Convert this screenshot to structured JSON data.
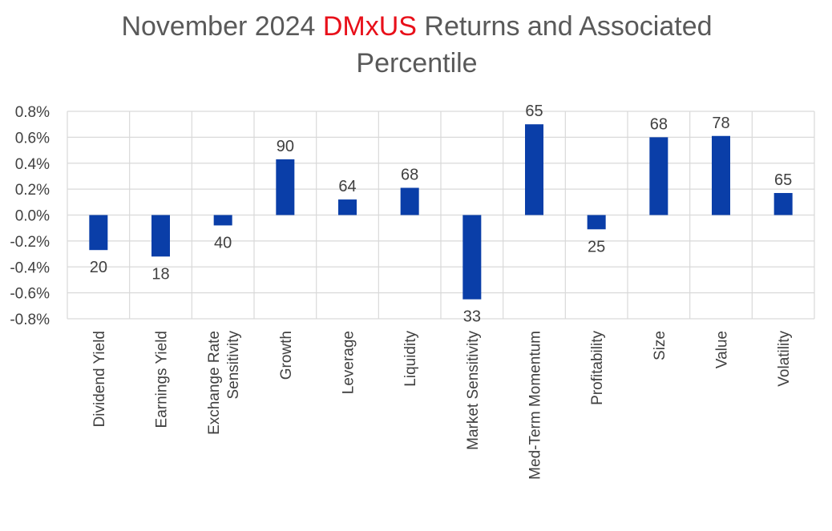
{
  "chart_data": {
    "type": "bar",
    "title": {
      "before": "November 2024 ",
      "highlight": "DMxUS",
      "after_line1": " Returns and Associated",
      "line2": "Percentile"
    },
    "categories": [
      [
        "Dividend Yield"
      ],
      [
        "Earnings Yield"
      ],
      [
        "Exchange Rate",
        "Sensitivity"
      ],
      [
        "Growth"
      ],
      [
        "Leverage"
      ],
      [
        "Liquidity"
      ],
      [
        "Market Sensitivity"
      ],
      [
        "Med-Term Momentum"
      ],
      [
        "Profitability"
      ],
      [
        "Size"
      ],
      [
        "Value"
      ],
      [
        "Volatility"
      ]
    ],
    "values": [
      -0.27,
      -0.32,
      -0.08,
      0.43,
      0.12,
      0.21,
      -0.65,
      0.7,
      -0.11,
      0.6,
      0.61,
      0.17
    ],
    "data_labels": [
      "20",
      "18",
      "40",
      "90",
      "64",
      "68",
      "33",
      "65",
      "25",
      "68",
      "78",
      "65"
    ],
    "ylim": [
      -0.8,
      0.8
    ],
    "yticks": [
      "0.8%",
      "0.6%",
      "0.4%",
      "0.2%",
      "0.0%",
      "-0.2%",
      "-0.4%",
      "-0.6%",
      "-0.8%"
    ],
    "ytick_values": [
      0.8,
      0.6,
      0.4,
      0.2,
      0.0,
      -0.2,
      -0.4,
      -0.6,
      -0.8
    ],
    "xlabel": "",
    "ylabel": "",
    "grid": true,
    "legend": "none",
    "bar_color": "#0a3ea8",
    "grid_color": "#d9d9d9",
    "highlight_color": "#e8101a"
  }
}
